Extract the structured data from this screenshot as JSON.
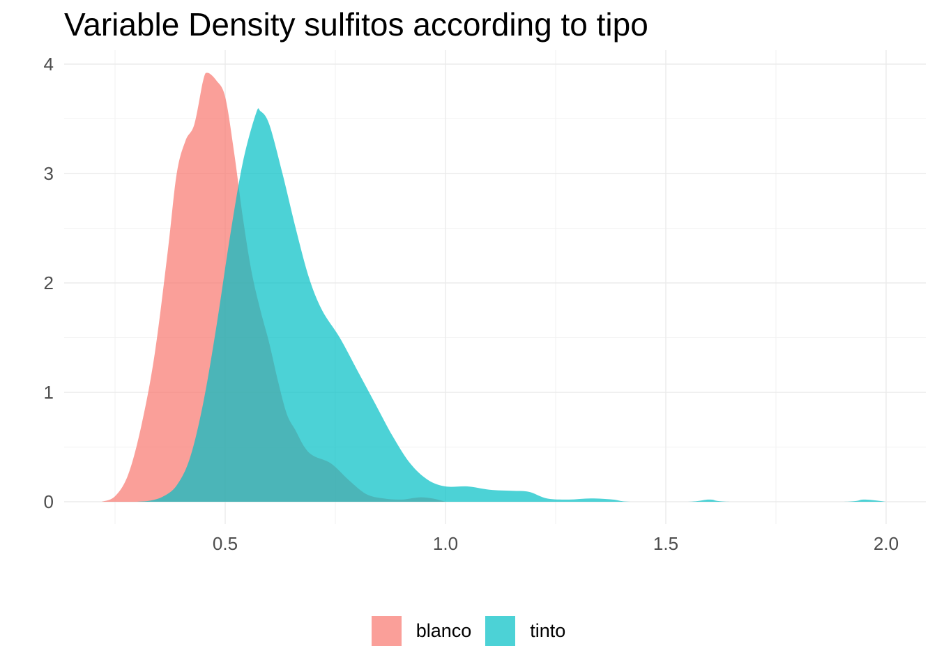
{
  "title": "Variable Density sulfitos according to tipo",
  "chart_data": {
    "type": "area",
    "title": "Variable Density sulfitos according to tipo",
    "xlabel": "",
    "ylabel": "",
    "xlim": [
      0.22,
      2.0
    ],
    "ylim": [
      0,
      4
    ],
    "x_ticks": [
      "0.5",
      "1.0",
      "1.5",
      "2.0"
    ],
    "y_ticks": [
      "0",
      "1",
      "2",
      "3",
      "4"
    ],
    "grid": true,
    "legend_position": "bottom",
    "series": [
      {
        "name": "blanco",
        "color": "#F8766D",
        "points": [
          [
            0.22,
            0.0
          ],
          [
            0.25,
            0.05
          ],
          [
            0.28,
            0.25
          ],
          [
            0.31,
            0.7
          ],
          [
            0.34,
            1.35
          ],
          [
            0.37,
            2.3
          ],
          [
            0.39,
            3.0
          ],
          [
            0.41,
            3.3
          ],
          [
            0.43,
            3.45
          ],
          [
            0.45,
            3.85
          ],
          [
            0.46,
            3.92
          ],
          [
            0.48,
            3.85
          ],
          [
            0.5,
            3.7
          ],
          [
            0.52,
            3.2
          ],
          [
            0.54,
            2.6
          ],
          [
            0.56,
            2.1
          ],
          [
            0.58,
            1.75
          ],
          [
            0.6,
            1.45
          ],
          [
            0.62,
            1.1
          ],
          [
            0.64,
            0.8
          ],
          [
            0.66,
            0.65
          ],
          [
            0.68,
            0.5
          ],
          [
            0.7,
            0.42
          ],
          [
            0.74,
            0.35
          ],
          [
            0.78,
            0.2
          ],
          [
            0.82,
            0.07
          ],
          [
            0.86,
            0.03
          ],
          [
            0.9,
            0.02
          ],
          [
            0.94,
            0.04
          ],
          [
            0.97,
            0.03
          ],
          [
            1.0,
            0.0
          ]
        ]
      },
      {
        "name": "tinto",
        "color": "#00BFC4",
        "points": [
          [
            0.3,
            0.0
          ],
          [
            0.33,
            0.01
          ],
          [
            0.36,
            0.05
          ],
          [
            0.39,
            0.15
          ],
          [
            0.42,
            0.4
          ],
          [
            0.45,
            0.9
          ],
          [
            0.48,
            1.6
          ],
          [
            0.51,
            2.4
          ],
          [
            0.54,
            3.1
          ],
          [
            0.57,
            3.55
          ],
          [
            0.58,
            3.57
          ],
          [
            0.6,
            3.45
          ],
          [
            0.63,
            3.0
          ],
          [
            0.66,
            2.5
          ],
          [
            0.69,
            2.05
          ],
          [
            0.72,
            1.75
          ],
          [
            0.76,
            1.5
          ],
          [
            0.8,
            1.2
          ],
          [
            0.84,
            0.9
          ],
          [
            0.88,
            0.6
          ],
          [
            0.92,
            0.35
          ],
          [
            0.96,
            0.2
          ],
          [
            1.0,
            0.14
          ],
          [
            1.05,
            0.14
          ],
          [
            1.1,
            0.11
          ],
          [
            1.15,
            0.1
          ],
          [
            1.19,
            0.09
          ],
          [
            1.23,
            0.03
          ],
          [
            1.28,
            0.02
          ],
          [
            1.33,
            0.03
          ],
          [
            1.38,
            0.02
          ],
          [
            1.42,
            0.0
          ],
          [
            1.55,
            0.0
          ],
          [
            1.6,
            0.02
          ],
          [
            1.65,
            0.0
          ],
          [
            1.9,
            0.0
          ],
          [
            1.95,
            0.02
          ],
          [
            2.0,
            0.0
          ]
        ]
      }
    ]
  },
  "legend": {
    "items": [
      {
        "label": "blanco",
        "color": "#F8766D"
      },
      {
        "label": "tinto",
        "color": "#00BFC4"
      }
    ]
  }
}
